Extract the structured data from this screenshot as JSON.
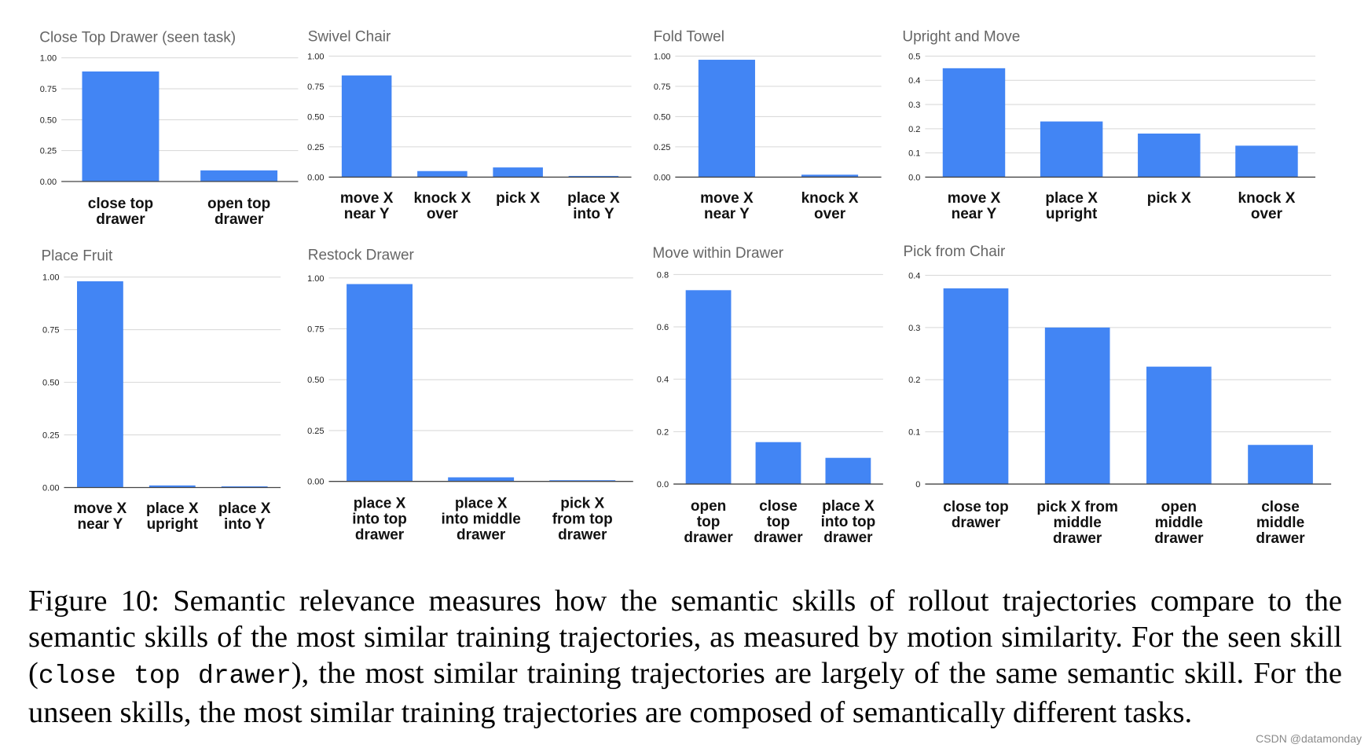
{
  "chart_data": [
    {
      "type": "bar",
      "title": "Close Top Drawer (seen task)",
      "categories": [
        [
          "close top",
          "drawer"
        ],
        [
          "open top",
          "drawer"
        ]
      ],
      "values": [
        0.89,
        0.09
      ],
      "ylim": [
        0,
        1
      ],
      "yticks": [
        "0.00",
        "0.25",
        "0.50",
        "0.75",
        "1.00"
      ],
      "xlabel": "",
      "ylabel": ""
    },
    {
      "type": "bar",
      "title": "Swivel Chair",
      "categories": [
        [
          "move X",
          "near Y"
        ],
        [
          "knock X",
          "over"
        ],
        [
          "pick X"
        ],
        [
          "place X",
          "into Y"
        ]
      ],
      "values": [
        0.84,
        0.05,
        0.08,
        0.005
      ],
      "ylim": [
        0,
        1
      ],
      "yticks": [
        "0.00",
        "0.25",
        "0.50",
        "0.75",
        "1.00"
      ],
      "xlabel": "",
      "ylabel": ""
    },
    {
      "type": "bar",
      "title": "Fold Towel",
      "categories": [
        [
          "move X",
          "near Y"
        ],
        [
          "knock X",
          "over"
        ]
      ],
      "values": [
        0.97,
        0.02
      ],
      "ylim": [
        0,
        1
      ],
      "yticks": [
        "0.00",
        "0.25",
        "0.50",
        "0.75",
        "1.00"
      ],
      "xlabel": "",
      "ylabel": ""
    },
    {
      "type": "bar",
      "title": "Upright and Move",
      "categories": [
        [
          "move X",
          "near Y"
        ],
        [
          "place X",
          "upright"
        ],
        [
          "pick X"
        ],
        [
          "knock X",
          "over"
        ]
      ],
      "values": [
        0.45,
        0.23,
        0.18,
        0.13
      ],
      "ylim": [
        0,
        0.5
      ],
      "yticks": [
        "0.0",
        "0.1",
        "0.2",
        "0.3",
        "0.4",
        "0.5"
      ],
      "xlabel": "",
      "ylabel": ""
    },
    {
      "type": "bar",
      "title": "Place Fruit",
      "categories": [
        [
          "move X",
          "near Y"
        ],
        [
          "place X",
          "upright"
        ],
        [
          "place X",
          "into Y"
        ]
      ],
      "values": [
        0.98,
        0.01,
        0.005
      ],
      "ylim": [
        0,
        1
      ],
      "yticks": [
        "0.00",
        "0.25",
        "0.50",
        "0.75",
        "1.00"
      ],
      "xlabel": "",
      "ylabel": ""
    },
    {
      "type": "bar",
      "title": "Restock Drawer",
      "categories": [
        [
          "place X",
          "into top",
          "drawer"
        ],
        [
          "place X",
          "into middle",
          "drawer"
        ],
        [
          "pick X",
          "from top",
          "drawer"
        ]
      ],
      "values": [
        0.97,
        0.02,
        0.005
      ],
      "ylim": [
        0,
        1
      ],
      "yticks": [
        "0.00",
        "0.25",
        "0.50",
        "0.75",
        "1.00"
      ],
      "xlabel": "",
      "ylabel": ""
    },
    {
      "type": "bar",
      "title": "Move within Drawer",
      "categories": [
        [
          "open",
          "top",
          "drawer"
        ],
        [
          "close",
          "top",
          "drawer"
        ],
        [
          "place X",
          "into top",
          "drawer"
        ]
      ],
      "values": [
        0.74,
        0.16,
        0.1
      ],
      "ylim": [
        0,
        0.8
      ],
      "yticks": [
        "0.0",
        "0.2",
        "0.4",
        "0.6",
        "0.8"
      ],
      "xlabel": "",
      "ylabel": ""
    },
    {
      "type": "bar",
      "title": "Pick from Chair",
      "categories": [
        [
          "close top",
          "drawer"
        ],
        [
          "pick X from",
          "middle",
          "drawer"
        ],
        [
          "open",
          "middle",
          "drawer"
        ],
        [
          "close",
          "middle",
          "drawer"
        ]
      ],
      "values": [
        0.375,
        0.3,
        0.225,
        0.075
      ],
      "ylim": [
        0,
        0.4
      ],
      "yticks": [
        "0",
        "0.1",
        "0.2",
        "0.3",
        "0.4"
      ],
      "xlabel": "",
      "ylabel": ""
    }
  ],
  "caption": {
    "part1": "Figure 10: Semantic relevance measures how the semantic skills of rollout trajectories compare to the semantic skills of the most similar training trajectories, as measured by motion similarity. For the seen skill (",
    "code": "close top drawer",
    "part2": "), the most similar training trajectories are largely of the same semantic skill. For the unseen skills, the most similar training trajectories are composed of semantically different tasks."
  },
  "watermark": "CSDN @datamonday",
  "colors": {
    "bar": "#4285f4",
    "grid": "#d6d6d6",
    "title": "#666666"
  }
}
